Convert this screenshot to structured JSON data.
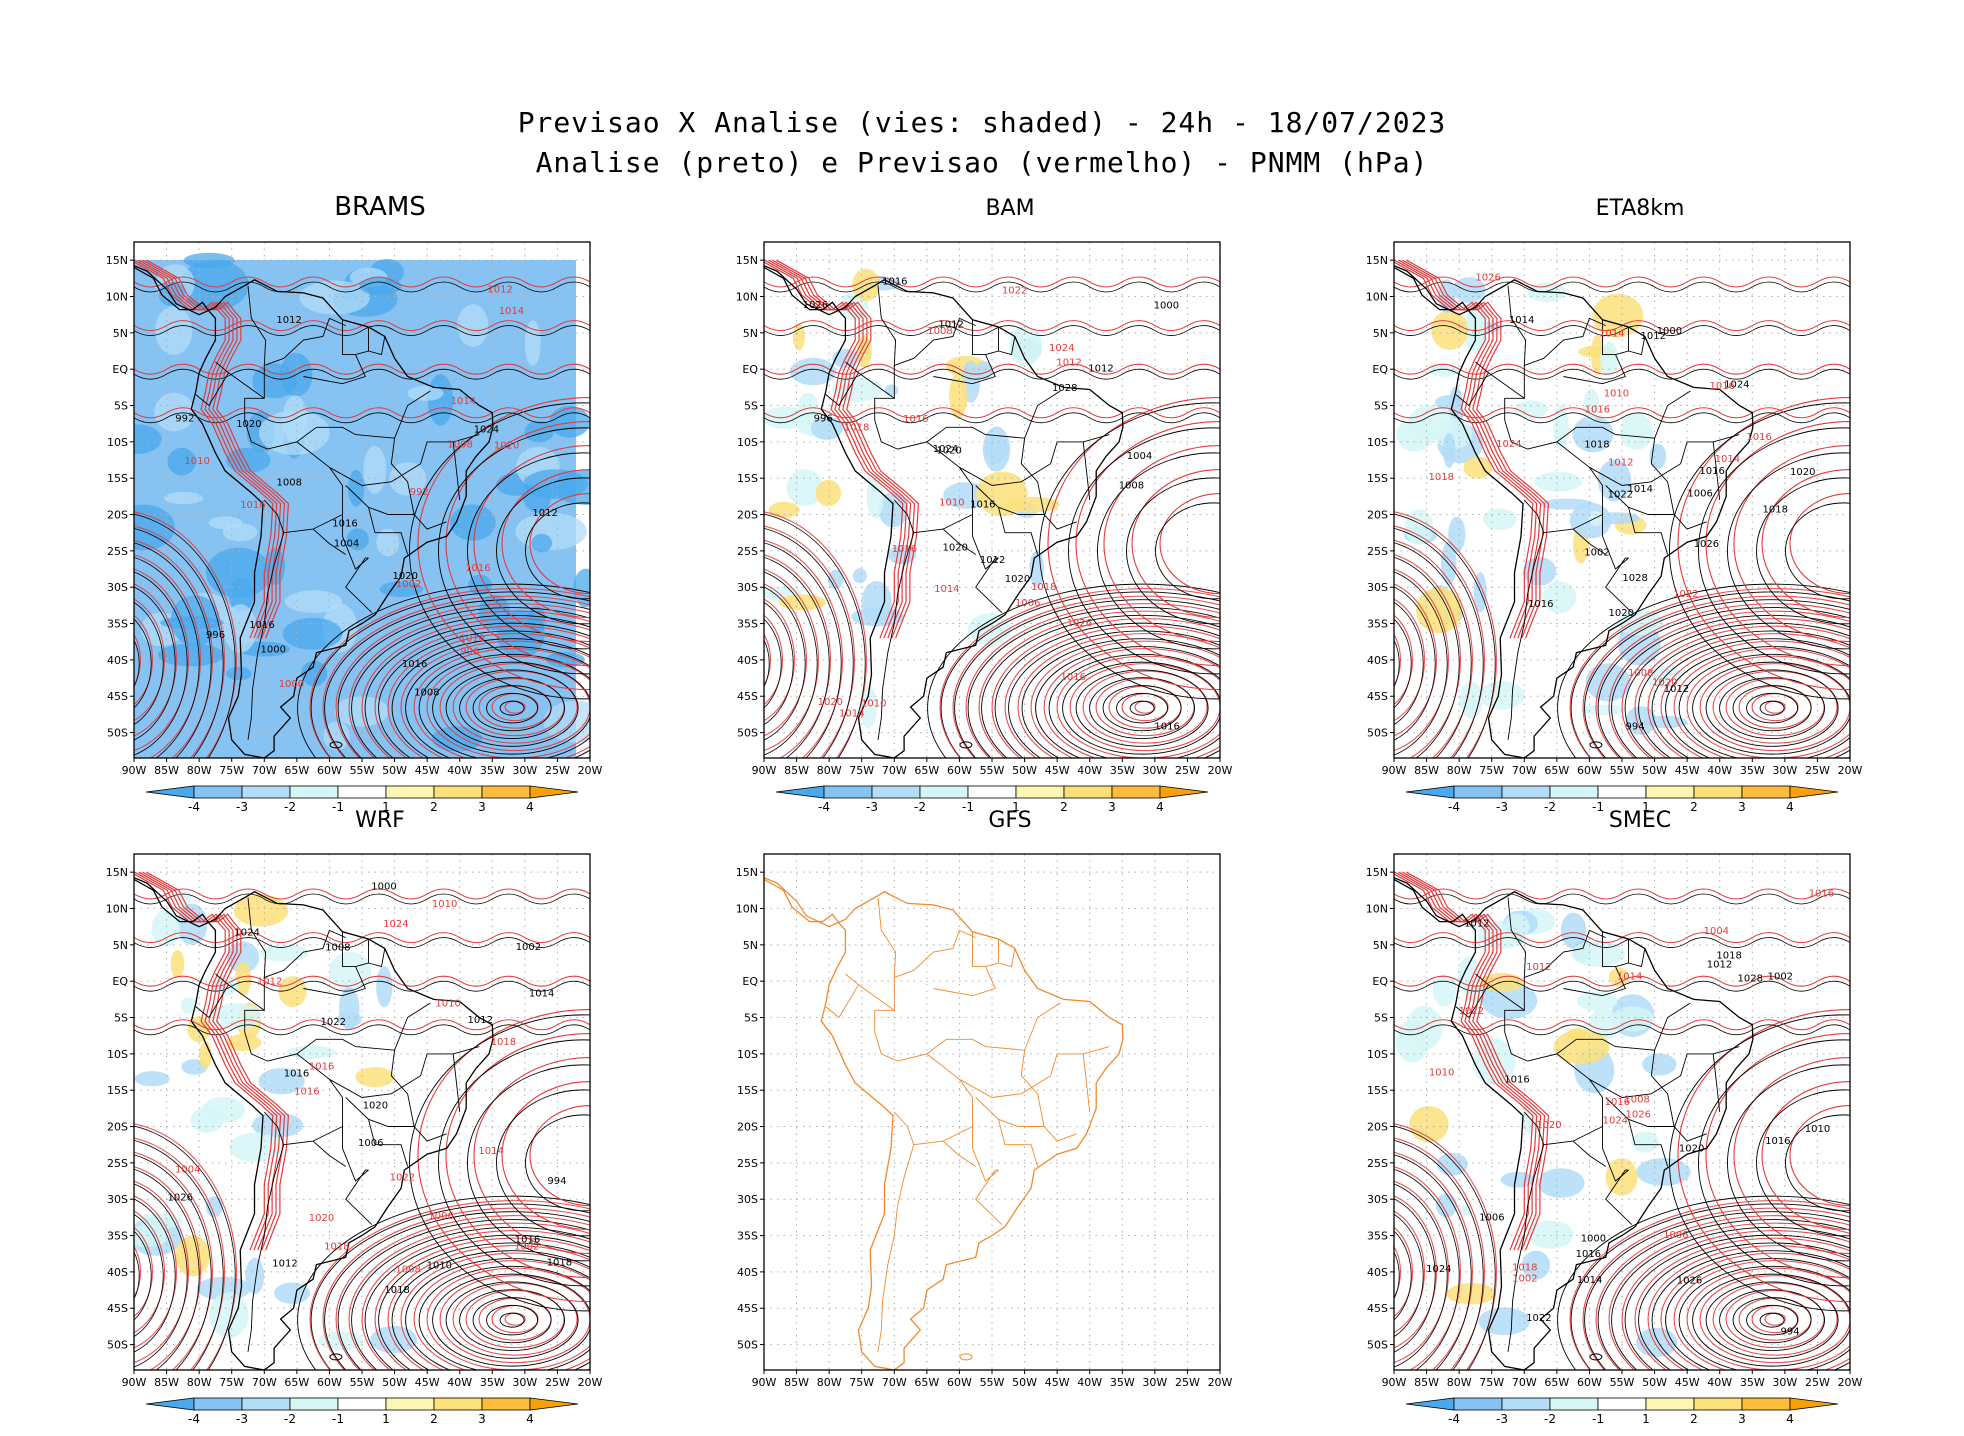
{
  "header": {
    "line1": "Previsao X Analise (vies: shaded) - 24h - 18/07/2023",
    "line2": "Analise (preto) e Previsao (vermelho) - PNMM (hPa)"
  },
  "axes": {
    "lat_labels": [
      "15N",
      "10N",
      "5N",
      "EQ",
      "5S",
      "10S",
      "15S",
      "20S",
      "25S",
      "30S",
      "35S",
      "40S",
      "45S",
      "50S"
    ],
    "lon_labels": [
      "90W",
      "85W",
      "80W",
      "75W",
      "70W",
      "65W",
      "60W",
      "55W",
      "50W",
      "45W",
      "40W",
      "35W",
      "30W",
      "25W",
      "20W"
    ]
  },
  "colorbar": {
    "labels": [
      "-4",
      "-3",
      "-2",
      "-1",
      "1",
      "2",
      "3",
      "4"
    ],
    "colors": [
      "#4aa8ec",
      "#86c2f2",
      "#b2dcf8",
      "#d6f6f6",
      "#ffffff",
      "#fcf6b4",
      "#fce07a",
      "#fcbc3c",
      "#f8a008"
    ]
  },
  "analysis_color": "#000000",
  "forecast_color": "#e43a3a",
  "panels": [
    {
      "id": "brams",
      "title": "BRAMS",
      "shading": "full",
      "labels_black": [
        "1008",
        "1012",
        "1016",
        "1020",
        "1024",
        "1016",
        "1012",
        "1008",
        "1004",
        "1000",
        "996",
        "992",
        "1016",
        "1020"
      ],
      "labels_red": [
        "1008",
        "1012",
        "1010",
        "1014",
        "1016",
        "1020",
        "1010",
        "1002",
        "1000",
        "996",
        "992",
        "1014",
        "1016"
      ]
    },
    {
      "id": "bam",
      "title": "BAM",
      "shading": "sparse",
      "labels_black": [
        "1012",
        "1016",
        "1012",
        "1016",
        "1020",
        "1020",
        "1024",
        "1020",
        "1016",
        "1012",
        "1008",
        "1004",
        "1000",
        "996",
        "1028",
        "1026"
      ],
      "labels_red": [
        "1010",
        "1016",
        "1014",
        "1018",
        "1016",
        "1022",
        "1024",
        "1026",
        "1018",
        "1016",
        "1014",
        "1012",
        "1008",
        "1006",
        "1020",
        "1010"
      ]
    },
    {
      "id": "eta8km",
      "title": "ETA8km",
      "shading": "medium",
      "labels_black": [
        "1018",
        "1012",
        "1014",
        "1016",
        "1020",
        "1022",
        "1024",
        "1020",
        "1018",
        "1016",
        "1012",
        "1006",
        "1002",
        "994",
        "1000",
        "1014",
        "1026",
        "1028"
      ],
      "labels_red": [
        "1010",
        "1016",
        "1014",
        "1012",
        "1018",
        "1022",
        "1020",
        "1016",
        "1008",
        "1026",
        "1024",
        "1016",
        "1014"
      ]
    },
    {
      "id": "wrf",
      "title": "WRF",
      "shading": "sparse",
      "labels_black": [
        "1018",
        "1012",
        "1010",
        "1016",
        "1020",
        "1022",
        "1024",
        "1018",
        "1016",
        "1014",
        "1012",
        "1006",
        "1002",
        "994",
        "1000",
        "1008",
        "1026"
      ],
      "labels_red": [
        "1016",
        "1014",
        "1010",
        "1012",
        "1018",
        "1020",
        "1022",
        "1024",
        "1016",
        "1010",
        "1008",
        "1004",
        "1002",
        "1018",
        "1006"
      ]
    },
    {
      "id": "gfs",
      "title": "GFS",
      "shading": "none",
      "labels_black": [],
      "labels_red": []
    },
    {
      "id": "smec",
      "title": "SMEC",
      "shading": "sparse",
      "labels_black": [
        "1016",
        "1012",
        "1010",
        "1016",
        "1020",
        "1022",
        "1024",
        "1018",
        "1016",
        "1014",
        "1012",
        "1006",
        "1002",
        "994",
        "1000",
        "1028",
        "1026"
      ],
      "labels_red": [
        "1016",
        "1014",
        "1012",
        "1018",
        "1020",
        "1022",
        "1024",
        "1026",
        "1016",
        "1010",
        "1008",
        "1004",
        "1002",
        "1006"
      ]
    }
  ]
}
